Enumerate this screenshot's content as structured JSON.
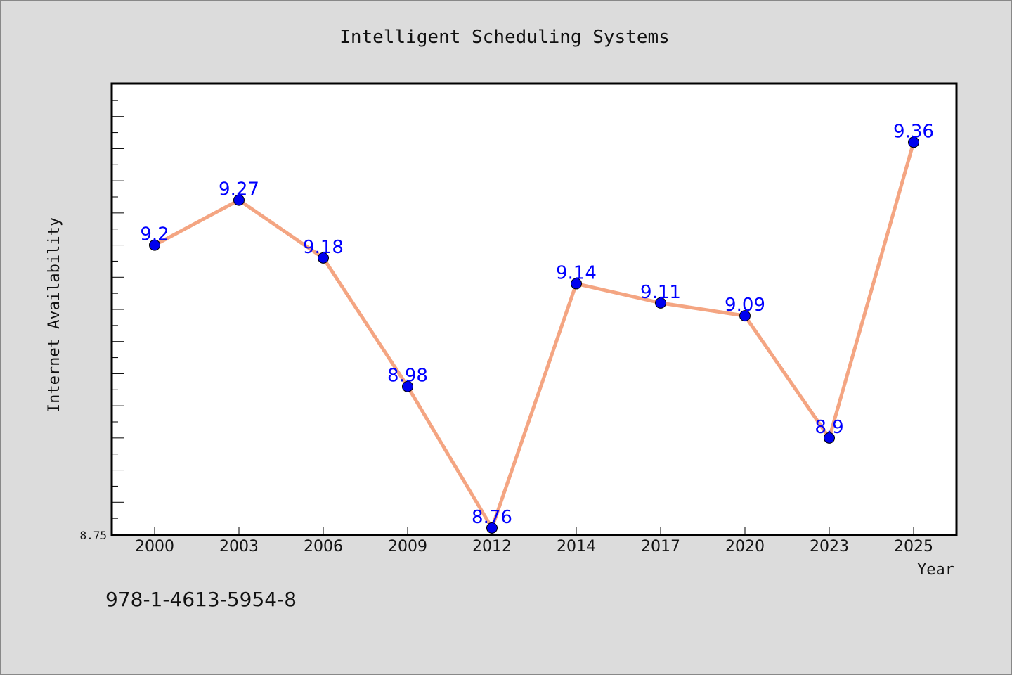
{
  "chart_data": {
    "type": "line",
    "title": "Intelligent Scheduling Systems",
    "xlabel": "Year",
    "ylabel": "Internet Availability",
    "categories": [
      "2000",
      "2003",
      "2006",
      "2009",
      "2012",
      "2014",
      "2017",
      "2020",
      "2023",
      "2025"
    ],
    "values": [
      9.2,
      9.27,
      9.18,
      8.98,
      8.76,
      9.14,
      9.11,
      9.09,
      8.9,
      9.36
    ],
    "data_labels": [
      "9.2",
      "9.27",
      "9.18",
      "8.98",
      "8.76",
      "9.14",
      "9.11",
      "9.09",
      "8.9",
      "9.36"
    ],
    "ylim": [
      8.75,
      9.45
    ],
    "ytick_labels": [
      "8.75"
    ],
    "grid": false,
    "line_color": "#f4a582",
    "marker_color": "#0000ee",
    "label_color": "#0000ff"
  },
  "footer": {
    "isbn": "978-1-4613-5954-8"
  }
}
